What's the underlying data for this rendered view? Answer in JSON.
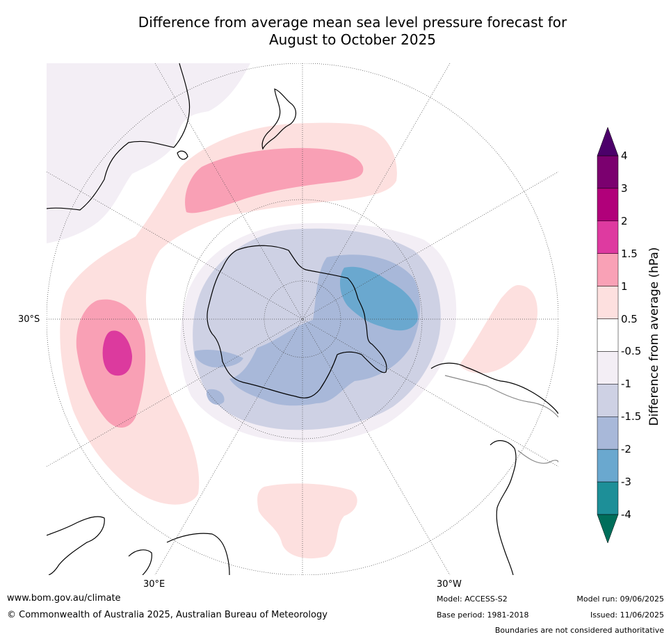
{
  "title": {
    "line1": "Difference from average mean sea level pressure forecast for",
    "line2": "August to October 2025"
  },
  "map": {
    "projection": "south-polar-stereographic",
    "lat_label": "30°S",
    "lon_labels": [
      "30°E",
      "30°W"
    ],
    "anomaly_regions": [
      {
        "name": "Antarctic low anomaly",
        "level": "-1.5 to -1",
        "color": "#ced1e4"
      },
      {
        "name": "Antarctic inner low anomaly",
        "level": "-2 to -1.5",
        "color": "#a8b8d9"
      },
      {
        "name": "Weddell/South Atlantic sector low anomaly",
        "level": "-3 to -2",
        "color": "#6aa8cf"
      },
      {
        "name": "Tasman Sea / south of NZ high anomaly",
        "level": "1 to 1.5",
        "color": "#f9a0b5"
      },
      {
        "name": "Southern Indian Ocean high anomaly",
        "level": "1.5 to 2",
        "color": "#dc3a9e"
      }
    ]
  },
  "colorbar": {
    "label": "Difference from average (hPa)",
    "ticks": [
      "4",
      "3",
      "2",
      "1.5",
      "1",
      "0.5",
      "-0.5",
      "-1",
      "-1.5",
      "-2",
      "-3",
      "-4"
    ],
    "colors": [
      "#7b006f",
      "#b1007a",
      "#de3aa0",
      "#f9a1b6",
      "#fde0df",
      "#ffffff",
      "#f3eef5",
      "#ced1e4",
      "#a8b8d9",
      "#6aa8cf",
      "#1d8f98"
    ],
    "extend_top_color": "#4c006a",
    "extend_bottom_color": "#006e5a"
  },
  "footer": {
    "url": "www.bom.gov.au/climate",
    "copyright": "© Commonwealth of Australia 2025, Australian Bureau of Meteorology",
    "model": "Model: ACCESS-S2",
    "base_period": "Base period: 1981-2018",
    "model_run": "Model run: 09/06/2025",
    "issued": "Issued: 11/06/2025",
    "disclaimer": "Boundaries are not considered authoritative"
  }
}
